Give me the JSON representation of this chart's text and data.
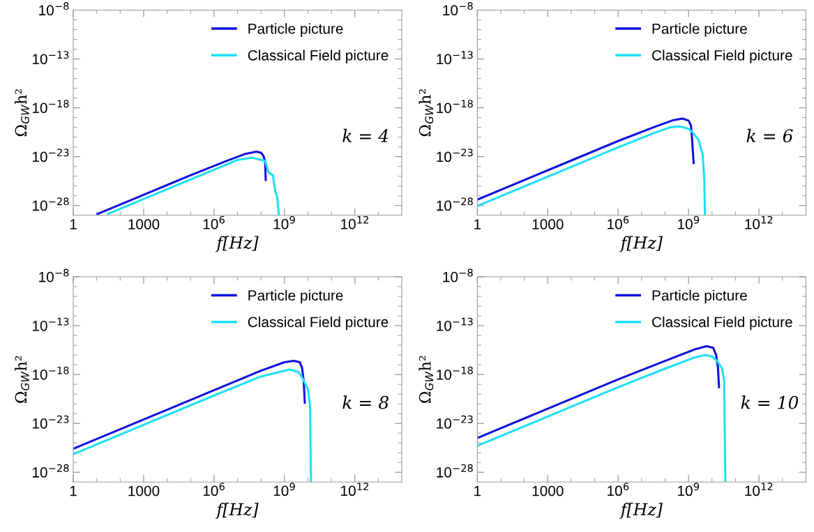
{
  "chart_data": [
    {
      "type": "line",
      "xlabel": "f[Hz]",
      "ylabel": "Ω$_{GW}$h²",
      "annotations": [
        "k = 4"
      ],
      "log": "xy",
      "legend": "top right",
      "grid": false,
      "xlim": [
        1,
        100000000000000.0
      ],
      "ylim": [
        1e-29,
        1e-08
      ],
      "xticks": [
        {
          "value": 1,
          "label": "1"
        },
        {
          "value": 10,
          "label": null
        },
        {
          "value": 100,
          "label": null
        },
        {
          "value": 1000,
          "label": "1000"
        },
        {
          "value": 10000.0,
          "label": null
        },
        {
          "value": 100000.0,
          "label": null
        },
        {
          "value": 1000000.0,
          "label": "10$^{6}$"
        },
        {
          "value": 10000000.0,
          "label": null
        },
        {
          "value": 100000000.0,
          "label": null
        },
        {
          "value": 1000000000.0,
          "label": "10$^{9}$"
        },
        {
          "value": 10000000000.0,
          "label": null
        },
        {
          "value": 100000000000.0,
          "label": null
        },
        {
          "value": 1000000000000.0,
          "label": "10$^{12}$"
        },
        {
          "value": 10000000000000.0,
          "label": null
        }
      ],
      "yticks": [
        {
          "value": 1e-08,
          "label": "10$^{−8}$"
        },
        {
          "value": 1e-09,
          "label": null
        },
        {
          "value": 1e-10,
          "label": null
        },
        {
          "value": 1e-11,
          "label": null
        },
        {
          "value": 1e-12,
          "label": null
        },
        {
          "value": 1e-13,
          "label": "10$^{−13}$"
        },
        {
          "value": 1e-14,
          "label": null
        },
        {
          "value": 1e-15,
          "label": null
        },
        {
          "value": 1e-16,
          "label": null
        },
        {
          "value": 1e-17,
          "label": null
        },
        {
          "value": 1e-18,
          "label": "10$^{−18}$"
        },
        {
          "value": 1e-19,
          "label": null
        },
        {
          "value": 1e-20,
          "label": null
        },
        {
          "value": 1e-21,
          "label": null
        },
        {
          "value": 1e-22,
          "label": null
        },
        {
          "value": 1e-23,
          "label": "10$^{−23}$"
        },
        {
          "value": 1e-24,
          "label": null
        },
        {
          "value": 1e-25,
          "label": null
        },
        {
          "value": 1e-26,
          "label": null
        },
        {
          "value": 1e-27,
          "label": null
        },
        {
          "value": 1e-28,
          "label": "10$^{−28}$"
        }
      ],
      "series": [
        {
          "name": "Particle picture",
          "color": "#1010e0",
          "x": [
            10,
            1000,
            100000.0,
            3200000.0,
            20000000.0,
            63000000.0,
            100000000.0,
            126000000.0,
            150000000.0,
            160000000.0
          ],
          "values": [
            1.26e-29,
            1.26e-27,
            1.26e-25,
            3.5e-24,
            1.8e-23,
            3.2e-23,
            2.5e-23,
            1.26e-23,
            3.2e-24,
            3.2e-26
          ]
        },
        {
          "name": "Classical Field picture",
          "color": "#1ee0f5",
          "x": [
            27.5,
            1000,
            100000.0,
            10000000.0,
            40000000.0,
            78000000.0,
            150000000.0,
            210000000.0,
            320000000.0,
            410000000.0,
            490000000.0,
            580000000.0
          ],
          "values": [
            1.26e-29,
            4.6e-28,
            4.6e-26,
            4.6e-24,
            7.9e-24,
            5.4e-24,
            3.7e-24,
            2.5e-25,
            1.26e-25,
            2.5e-27,
            7.9e-28,
            1e-29
          ]
        }
      ]
    },
    {
      "type": "line",
      "xlabel": "f[Hz]",
      "ylabel": "Ω$_{GW}$h²",
      "annotations": [
        "k = 6"
      ],
      "log": "xy",
      "legend": "top right",
      "grid": false,
      "xlim": [
        1,
        100000000000000.0
      ],
      "ylim": [
        1e-29,
        1e-08
      ],
      "xticks": [
        {
          "value": 1,
          "label": "1"
        },
        {
          "value": 10,
          "label": null
        },
        {
          "value": 100,
          "label": null
        },
        {
          "value": 1000,
          "label": "1000"
        },
        {
          "value": 10000.0,
          "label": null
        },
        {
          "value": 100000.0,
          "label": null
        },
        {
          "value": 1000000.0,
          "label": "10$^{6}$"
        },
        {
          "value": 10000000.0,
          "label": null
        },
        {
          "value": 100000000.0,
          "label": null
        },
        {
          "value": 1000000000.0,
          "label": "10$^{9}$"
        },
        {
          "value": 10000000000.0,
          "label": null
        },
        {
          "value": 100000000000.0,
          "label": null
        },
        {
          "value": 1000000000000.0,
          "label": "10$^{12}$"
        },
        {
          "value": 10000000000000.0,
          "label": null
        }
      ],
      "yticks": [
        {
          "value": 1e-08,
          "label": "10$^{−8}$"
        },
        {
          "value": 1e-09,
          "label": null
        },
        {
          "value": 1e-10,
          "label": null
        },
        {
          "value": 1e-11,
          "label": null
        },
        {
          "value": 1e-12,
          "label": null
        },
        {
          "value": 1e-13,
          "label": "10$^{−13}$"
        },
        {
          "value": 1e-14,
          "label": null
        },
        {
          "value": 1e-15,
          "label": null
        },
        {
          "value": 1e-16,
          "label": null
        },
        {
          "value": 1e-17,
          "label": null
        },
        {
          "value": 1e-18,
          "label": "10$^{−18}$"
        },
        {
          "value": 1e-19,
          "label": null
        },
        {
          "value": 1e-20,
          "label": null
        },
        {
          "value": 1e-21,
          "label": null
        },
        {
          "value": 1e-22,
          "label": null
        },
        {
          "value": 1e-23,
          "label": "10$^{−23}$"
        },
        {
          "value": 1e-24,
          "label": null
        },
        {
          "value": 1e-25,
          "label": null
        },
        {
          "value": 1e-26,
          "label": null
        },
        {
          "value": 1e-27,
          "label": null
        },
        {
          "value": 1e-28,
          "label": "10$^{−28}$"
        }
      ],
      "series": [
        {
          "name": "Particle picture",
          "color": "#1010e0",
          "x": [
            1,
            1000,
            1000000.0,
            32000000.0,
            200000000.0,
            540000000.0,
            1000000000.0,
            1260000000.0,
            1400000000.0,
            1660000000.0
          ],
          "values": [
            4e-28,
            4e-25,
            4e-22,
            1e-20,
            5e-20,
            7.9e-20,
            5e-20,
            1.6e-20,
            1e-21,
            1.7e-24
          ]
        },
        {
          "name": "Classical Field picture",
          "color": "#1ee0f5",
          "x": [
            1,
            1000,
            1000000.0,
            32000000.0,
            160000000.0,
            420000000.0,
            1000000000.0,
            1600000000.0,
            2700000000.0,
            4000000000.0,
            4700000000.0,
            5000000000.0
          ],
          "values": [
            8.9e-29,
            8.9e-26,
            8.9e-23,
            2.5e-21,
            1e-20,
            1.26e-20,
            7.1e-21,
            2.5e-21,
            5e-22,
            1.6e-23,
            4e-26,
            1e-29
          ]
        }
      ]
    },
    {
      "type": "line",
      "xlabel": "f[Hz]",
      "ylabel": "Ω$_{GW}$h²",
      "annotations": [
        "k = 8"
      ],
      "log": "xy",
      "legend": "top right",
      "grid": false,
      "xlim": [
        1,
        100000000000000.0
      ],
      "ylim": [
        1e-29,
        1e-08
      ],
      "xticks": [
        {
          "value": 1,
          "label": "1"
        },
        {
          "value": 10,
          "label": null
        },
        {
          "value": 100,
          "label": null
        },
        {
          "value": 1000,
          "label": "1000"
        },
        {
          "value": 10000.0,
          "label": null
        },
        {
          "value": 100000.0,
          "label": null
        },
        {
          "value": 1000000.0,
          "label": "10$^{6}$"
        },
        {
          "value": 10000000.0,
          "label": null
        },
        {
          "value": 100000000.0,
          "label": null
        },
        {
          "value": 1000000000.0,
          "label": "10$^{9}$"
        },
        {
          "value": 10000000000.0,
          "label": null
        },
        {
          "value": 100000000000.0,
          "label": null
        },
        {
          "value": 1000000000000.0,
          "label": "10$^{12}$"
        },
        {
          "value": 10000000000000.0,
          "label": null
        }
      ],
      "yticks": [
        {
          "value": 1e-08,
          "label": "10$^{−8}$"
        },
        {
          "value": 1e-09,
          "label": null
        },
        {
          "value": 1e-10,
          "label": null
        },
        {
          "value": 1e-11,
          "label": null
        },
        {
          "value": 1e-12,
          "label": null
        },
        {
          "value": 1e-13,
          "label": "10$^{−13}$"
        },
        {
          "value": 1e-14,
          "label": null
        },
        {
          "value": 1e-15,
          "label": null
        },
        {
          "value": 1e-16,
          "label": null
        },
        {
          "value": 1e-17,
          "label": null
        },
        {
          "value": 1e-18,
          "label": "10$^{−18}$"
        },
        {
          "value": 1e-19,
          "label": null
        },
        {
          "value": 1e-20,
          "label": null
        },
        {
          "value": 1e-21,
          "label": null
        },
        {
          "value": 1e-22,
          "label": null
        },
        {
          "value": 1e-23,
          "label": "10$^{−23}$"
        },
        {
          "value": 1e-24,
          "label": null
        },
        {
          "value": 1e-25,
          "label": null
        },
        {
          "value": 1e-26,
          "label": null
        },
        {
          "value": 1e-27,
          "label": null
        },
        {
          "value": 1e-28,
          "label": "10$^{−28}$"
        }
      ],
      "series": [
        {
          "name": "Particle picture",
          "color": "#1010e0",
          "x": [
            1,
            1000,
            1000000.0,
            100000000.0,
            1000000000.0,
            2500000000.0,
            4500000000.0,
            5600000000.0,
            6600000000.0,
            7400000000.0
          ],
          "values": [
            2.5e-26,
            2.5e-23,
            2.5e-20,
            2.5e-18,
            1.8e-17,
            2.5e-17,
            1.8e-17,
            5e-18,
            2.5e-19,
            1e-21
          ]
        },
        {
          "name": "Classical Field picture",
          "color": "#1ee0f5",
          "x": [
            1,
            1000,
            1000000.0,
            100000000.0,
            1660000000.0,
            4000000000.0,
            6000000000.0,
            10000000000.0,
            12300000000.0,
            13500000000.0
          ],
          "values": [
            7.1e-27,
            7.1e-24,
            7.1e-21,
            6.3e-19,
            3.2e-18,
            1.8e-18,
            4e-19,
            3.2e-20,
            7.9e-22,
            1e-29
          ]
        }
      ]
    },
    {
      "type": "line",
      "xlabel": "f[Hz]",
      "ylabel": "Ω$_{GW}$h²",
      "annotations": [
        "k = 10"
      ],
      "log": "xy",
      "legend": "top right",
      "grid": false,
      "xlim": [
        1,
        100000000000000.0
      ],
      "ylim": [
        1e-29,
        1e-08
      ],
      "xticks": [
        {
          "value": 1,
          "label": "1"
        },
        {
          "value": 10,
          "label": null
        },
        {
          "value": 100,
          "label": null
        },
        {
          "value": 1000,
          "label": "1000"
        },
        {
          "value": 10000.0,
          "label": null
        },
        {
          "value": 100000.0,
          "label": null
        },
        {
          "value": 1000000.0,
          "label": "10$^{6}$"
        },
        {
          "value": 10000000.0,
          "label": null
        },
        {
          "value": 100000000.0,
          "label": null
        },
        {
          "value": 1000000000.0,
          "label": "10$^{9}$"
        },
        {
          "value": 10000000000.0,
          "label": null
        },
        {
          "value": 100000000000.0,
          "label": null
        },
        {
          "value": 1000000000000.0,
          "label": "10$^{12}$"
        },
        {
          "value": 10000000000000.0,
          "label": null
        }
      ],
      "yticks": [
        {
          "value": 1e-08,
          "label": "10$^{−8}$"
        },
        {
          "value": 1e-09,
          "label": null
        },
        {
          "value": 1e-10,
          "label": null
        },
        {
          "value": 1e-11,
          "label": null
        },
        {
          "value": 1e-12,
          "label": null
        },
        {
          "value": 1e-13,
          "label": "10$^{−13}$"
        },
        {
          "value": 1e-14,
          "label": null
        },
        {
          "value": 1e-15,
          "label": null
        },
        {
          "value": 1e-16,
          "label": null
        },
        {
          "value": 1e-17,
          "label": null
        },
        {
          "value": 1e-18,
          "label": "10$^{−18}$"
        },
        {
          "value": 1e-19,
          "label": null
        },
        {
          "value": 1e-20,
          "label": null
        },
        {
          "value": 1e-21,
          "label": null
        },
        {
          "value": 1e-22,
          "label": null
        },
        {
          "value": 1e-23,
          "label": "10$^{−23}$"
        },
        {
          "value": 1e-24,
          "label": null
        },
        {
          "value": 1e-25,
          "label": null
        },
        {
          "value": 1e-26,
          "label": null
        },
        {
          "value": 1e-27,
          "label": null
        },
        {
          "value": 1e-28,
          "label": "10$^{−28}$"
        }
      ],
      "series": [
        {
          "name": "Particle picture",
          "color": "#1010e0",
          "x": [
            1,
            1000,
            1000000.0,
            100000000.0,
            2000000000.0,
            5800000000.0,
            11200000000.0,
            15000000000.0,
            18000000000.0,
            20000000000.0
          ],
          "values": [
            3.2e-25,
            3.2e-22,
            3.2e-19,
            2.5e-17,
            4e-16,
            7.9e-16,
            5.6e-16,
            1e-16,
            5e-18,
            4e-20
          ]
        },
        {
          "name": "Classical Field picture",
          "color": "#1ee0f5",
          "x": [
            1,
            1000,
            1000000.0,
            100000000.0,
            1600000000.0,
            5100000000.0,
            10000000000.0,
            16600000000.0,
            27000000000.0,
            33000000000.0,
            37000000000.0
          ],
          "values": [
            5e-26,
            5e-23,
            5e-20,
            4e-18,
            5e-17,
            1e-16,
            7.1e-17,
            2.5e-17,
            4e-18,
            2e-19,
            1e-29
          ]
        }
      ]
    }
  ]
}
